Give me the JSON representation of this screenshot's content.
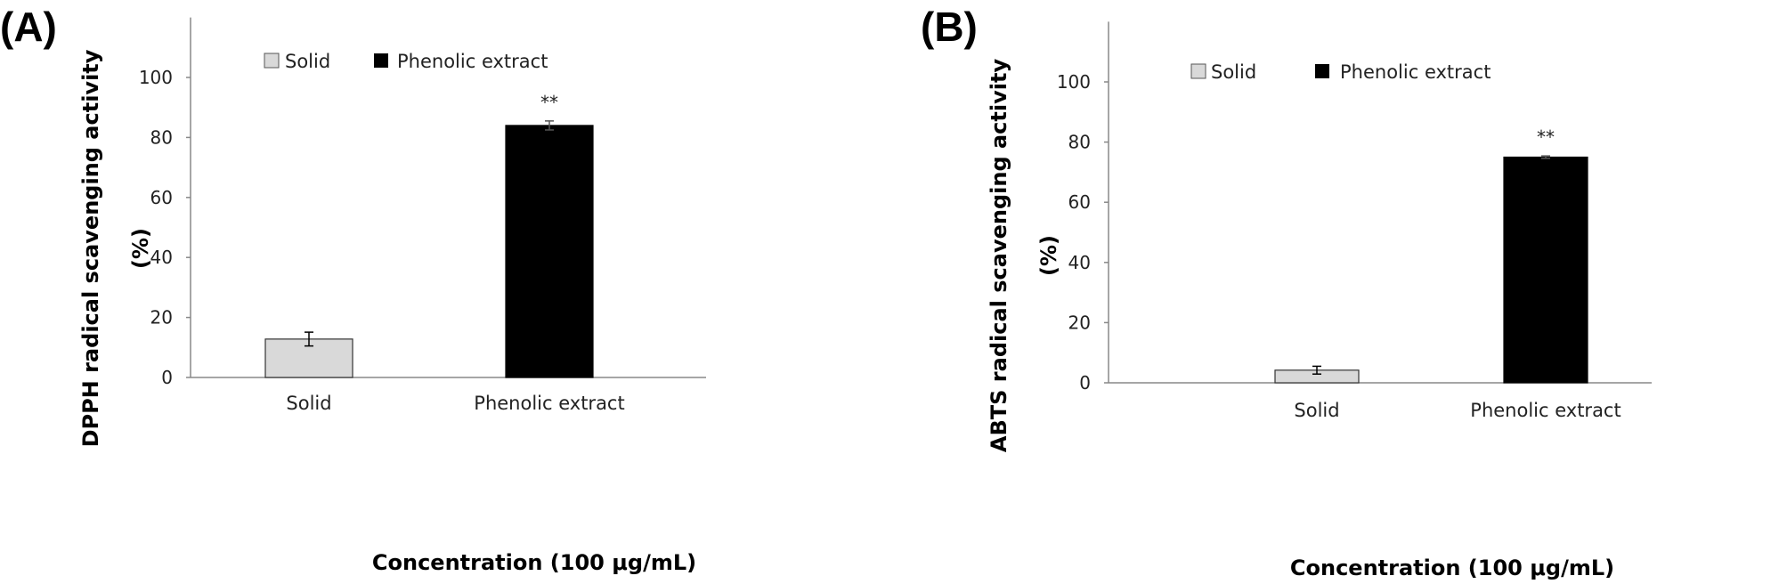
{
  "chart_data": [
    {
      "type": "bar",
      "panel_label": "(A)",
      "categories": [
        "Solid",
        "Phenolic extract"
      ],
      "values": [
        12.8,
        84.0
      ],
      "errors": [
        2.3,
        1.5
      ],
      "significance": [
        "",
        "**"
      ],
      "bar_colors": [
        "#d9d9d9",
        "#000000"
      ],
      "legend": [
        "Solid",
        "Phenolic extract"
      ],
      "legend_position": "top-left",
      "xlabel": "Concentration (100 μg/mL)",
      "ylabel": [
        "DPPH radical scavenging activity",
        "(%)"
      ],
      "yticks": [
        0,
        20,
        40,
        60,
        80,
        100
      ],
      "ylim": [
        0,
        120
      ],
      "grid": false
    },
    {
      "type": "bar",
      "panel_label": "(B)",
      "categories": [
        "Solid",
        "Phenolic extract"
      ],
      "values": [
        4.2,
        75.0
      ],
      "errors": [
        1.3,
        0.4
      ],
      "significance": [
        "",
        "**"
      ],
      "bar_colors": [
        "#d9d9d9",
        "#000000"
      ],
      "legend": [
        "Solid",
        "Phenolic extract"
      ],
      "legend_position": "top-left",
      "xlabel": "Concentration (100 μg/mL)",
      "ylabel": [
        "ABTS radical scavenging activity",
        "(%)"
      ],
      "yticks": [
        0,
        20,
        40,
        60,
        80,
        100
      ],
      "ylim": [
        0,
        120
      ],
      "grid": false
    }
  ]
}
